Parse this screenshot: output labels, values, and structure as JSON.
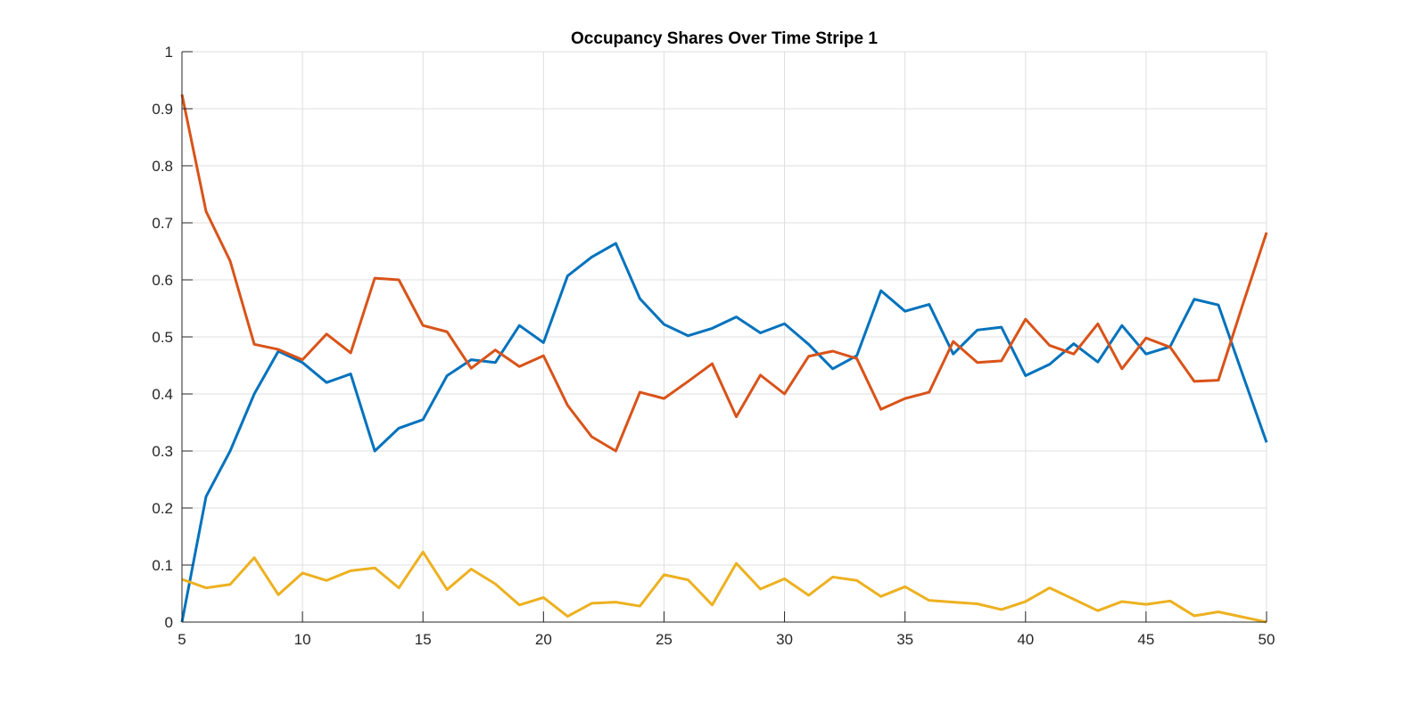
{
  "chart_data": {
    "type": "line",
    "title": "Occupancy Shares Over Time Stripe 1",
    "xlabel": "",
    "ylabel": "",
    "xlim": [
      5,
      50
    ],
    "ylim": [
      0,
      1
    ],
    "xticks": [
      5,
      10,
      15,
      20,
      25,
      30,
      35,
      40,
      45,
      50
    ],
    "yticks": [
      0,
      0.1,
      0.2,
      0.3,
      0.4,
      0.5,
      0.6,
      0.7,
      0.8,
      0.9,
      1
    ],
    "grid": true,
    "legend": "none",
    "x": [
      5,
      6,
      7,
      8,
      9,
      10,
      11,
      12,
      13,
      14,
      15,
      16,
      17,
      18,
      19,
      20,
      21,
      22,
      23,
      24,
      25,
      26,
      27,
      28,
      29,
      30,
      31,
      32,
      33,
      34,
      35,
      36,
      37,
      38,
      39,
      40,
      41,
      42,
      43,
      44,
      45,
      46,
      47,
      48,
      49,
      50
    ],
    "series": [
      {
        "color": "#0072bd",
        "values": [
          0.0,
          0.22,
          0.3,
          0.4,
          0.475,
          0.455,
          0.42,
          0.435,
          0.3,
          0.34,
          0.355,
          0.432,
          0.46,
          0.455,
          0.52,
          0.49,
          0.607,
          0.64,
          0.664,
          0.567,
          0.522,
          0.502,
          0.515,
          0.535,
          0.507,
          0.523,
          0.487,
          0.444,
          0.467,
          0.581,
          0.545,
          0.557,
          0.47,
          0.512,
          0.517,
          0.432,
          0.452,
          0.488,
          0.456,
          0.52,
          0.47,
          0.483,
          0.566,
          0.556,
          0.435,
          0.315
        ]
      },
      {
        "color": "#d95319",
        "values": [
          0.925,
          0.72,
          0.633,
          0.487,
          0.478,
          0.46,
          0.505,
          0.472,
          0.603,
          0.6,
          0.52,
          0.509,
          0.445,
          0.477,
          0.448,
          0.467,
          0.38,
          0.325,
          0.3,
          0.403,
          0.392,
          0.422,
          0.453,
          0.36,
          0.433,
          0.4,
          0.466,
          0.475,
          0.462,
          0.373,
          0.392,
          0.403,
          0.492,
          0.455,
          0.458,
          0.531,
          0.485,
          0.47,
          0.523,
          0.444,
          0.498,
          0.482,
          0.422,
          0.424,
          0.555,
          0.683
        ]
      },
      {
        "color": "#edb120",
        "values": [
          0.075,
          0.06,
          0.066,
          0.113,
          0.048,
          0.086,
          0.073,
          0.09,
          0.095,
          0.06,
          0.123,
          0.057,
          0.093,
          0.067,
          0.03,
          0.043,
          0.01,
          0.033,
          0.035,
          0.028,
          0.083,
          0.074,
          0.03,
          0.103,
          0.058,
          0.076,
          0.047,
          0.079,
          0.073,
          0.045,
          0.062,
          0.038,
          0.035,
          0.032,
          0.022,
          0.036,
          0.06,
          0.04,
          0.02,
          0.036,
          0.031,
          0.037,
          0.011,
          0.018,
          0.009,
          0.0
        ]
      }
    ]
  }
}
